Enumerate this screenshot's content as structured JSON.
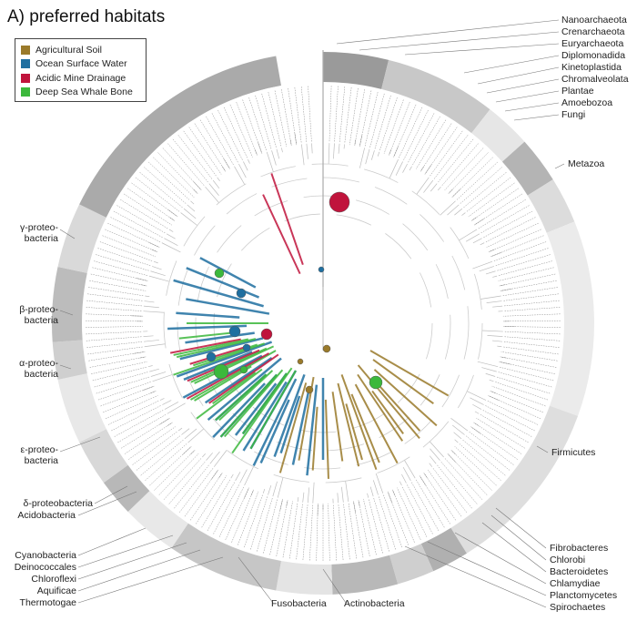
{
  "title": "A) preferred habitats",
  "legend": [
    {
      "label": "Agricultural Soil",
      "color": "#9a7a2a"
    },
    {
      "label": "Ocean Surface Water",
      "color": "#1f6fa0"
    },
    {
      "label": "Acidic Mine Drainage",
      "color": "#c0143c"
    },
    {
      "label": "Deep Sea Whale Bone",
      "color": "#3cb83c"
    }
  ],
  "clades_right": [
    "Nanoarchaeota",
    "Crenarchaeota",
    "Euryarchaeota",
    "Diplomonadida",
    "Kinetoplastida",
    "Chromalveolata",
    "Plantae",
    "Amoebozoa",
    "Fungi",
    "Metazoa",
    "Firmicutes",
    "Fibrobacteres",
    "Chlorobi",
    "Bacteroidetes",
    "Chlamydiae",
    "Planctomycetes",
    "Spirochaetes"
  ],
  "clades_left": [
    "γ-proteo-\nbacteria",
    "β-proteo-\nbacteria",
    "α-proteo-\nbacteria",
    "ε-proteo-\nbacteria",
    "δ-proteobacteria",
    "Acidobacteria",
    "Cyanobacteria",
    "Deinococcales",
    "Chloroflexi",
    "Aquificae",
    "Thermotogae"
  ],
  "clades_bottom": [
    "Fusobacteria",
    "Actinobacteria"
  ],
  "taxa_upper_left": [
    "Escherichia coli",
    "Shigella flexneri",
    "Salmonella typhi",
    "Yersinia pestis",
    "Erwinia carotovora",
    "Buchnera aphidicola",
    "Wigglesworthia",
    "Blochmannia",
    "Haemophilus influenzae",
    "Pasteurella multocida",
    "Vibrio cholerae",
    "Vibrio vulnificus",
    "Photobacterium",
    "Shewanella",
    "Pseudomonas aeruginosa",
    "Pseudomonas putida",
    "Xylella fastidiosa",
    "Xanthomonas campestris",
    "Coxiella burnetii"
  ],
  "taxa_beta": [
    "Bordetella parapertussis",
    "Bordetella bronchiseptica",
    "Bordetella pertussis",
    "Ralstonia solanacearum",
    "Neisseria meningitidis A",
    "Neisseria meningitidis B",
    "Chromobacterium violaceum",
    "Nitrosomonas europaea"
  ],
  "taxa_alpha": [
    "Agrobacterium tumefaciens",
    "Sinorhizobium meliloti",
    "Brucella suis",
    "Brucella melitensis",
    "Mesorhizobium loti",
    "Rhodopseudomonas palustris",
    "Bradyrhizobium japonicum",
    "Caulobacter crescentus",
    "Rickettsia prowazekii",
    "Wolbachia sp.",
    "Helicobacter pylori",
    "Campylobacter jejuni"
  ],
  "taxa_archaea": [
    "Nanoarchaeum equitans",
    "Aeropyrum pernix",
    "Sulfolobus solfataricus",
    "Pyrobaculum aerophilum",
    "Methanopyrus kandleri",
    "Methanothermobacter",
    "Methanocaldococcus",
    "Pyrococcus furiosus",
    "Thermococcus",
    "Halobacterium",
    "Archaeoglobus fulgidus",
    "Thermoplasma"
  ],
  "taxa_euk": [
    "Giardia lamblia",
    "Leishmania major",
    "Trypanosoma",
    "Plasmodium falciparum",
    "Arabidopsis thaliana",
    "Oryza sativa",
    "Dictyostelium",
    "Saccharomyces cerevisiae",
    "Schizosaccharomyces pombe",
    "Caenorhabditis elegans",
    "Drosophila melanogaster",
    "Anopheles gambiae",
    "Danio rerio",
    "Gallus gallus",
    "Mus musculus",
    "Rattus norvegicus",
    "Homo sapiens",
    "Pan troglodytes"
  ],
  "taxa_firmicutes": [
    "Thermoanaerobact. tengcongensis",
    "Clostridium acetobutylicum",
    "Clostridium perfringens",
    "Clostridium tetani",
    "Phytoplasma Onion yellows",
    "Mycoplasma mycoides",
    "Mycoplasma pulmonis",
    "Mycoplasma mobile",
    "Ureaplasma parvum",
    "Mycoplasma penetrans",
    "M. genitalium",
    "M. pneumoniae",
    "M. gallisepticum",
    "Lactobacillus plantarum",
    "Lactobacillus johnsonii",
    "Enterococcus faecalis",
    "Lactococcus lactis",
    "Streptococcus pneumoniae TIGR4",
    "Streptococcus pneumoniae R6",
    "Streptococcus mutans",
    "Streptococcus agalactiae III",
    "Streptococcus agalactiae V",
    "Streptococcus pyogenes M1",
    "Streptococcus pyogenes SSI-1",
    "Staphylococcus aureus MW2",
    "Staphylococcus aureus N315",
    "Listeria monocytogenes",
    "Bacillus subtilis",
    "Bacillus cereus ATCC 14579",
    "Bacillus anthracis"
  ],
  "taxa_bottom": [
    "Chlamydia trachomatis",
    "Chlamydophila pneumoniae",
    "Pirellula sp.",
    "Treponema pallidum",
    "Borrelia burgdorferi",
    "Leptospira interrogans",
    "Porphyromonas gingivalis",
    "Bacteroides thetaiotaomicron",
    "Chlorobium tepidum",
    "Fusobacterium nucleatum",
    "Streptomyces coelicolor",
    "Streptomyces avermitilis",
    "Mycobacterium leprae",
    "Mycobacterium tuberculosis",
    "Mycobacterium bovis",
    "Corynebacterium glutamicum",
    "Corynebacterium diphtheriae",
    "Bifidobacterium longum",
    "Tropheryma whipplei",
    "Thermosynechococcus",
    "Synechocystis sp.",
    "Prochlorococcus marinus",
    "Nostoc sp.",
    "Gloeobacter violaceus",
    "Deinococcus radiodurans",
    "Thermus thermophilus",
    "Aquifex aeolicus",
    "Thermotoga maritima"
  ]
}
